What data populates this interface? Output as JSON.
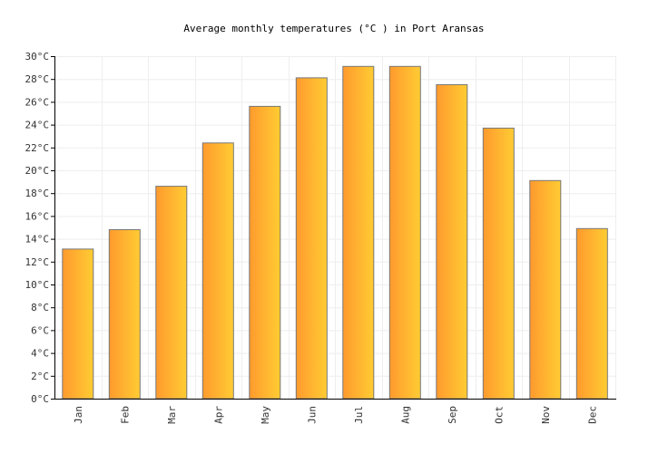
{
  "chart_data": {
    "type": "bar",
    "title": "Average monthly temperatures (°C ) in Port Aransas",
    "xlabel": "",
    "ylabel": "",
    "categories": [
      "Jan",
      "Feb",
      "Mar",
      "Apr",
      "May",
      "Jun",
      "Jul",
      "Aug",
      "Sep",
      "Oct",
      "Nov",
      "Dec"
    ],
    "values": [
      13.1,
      14.8,
      18.6,
      22.4,
      25.6,
      28.1,
      29.1,
      29.1,
      27.5,
      23.7,
      19.1,
      14.9
    ],
    "ylim": [
      0,
      30
    ],
    "y_ticks": [
      0,
      2,
      4,
      6,
      8,
      10,
      12,
      14,
      16,
      18,
      20,
      22,
      24,
      26,
      28,
      30
    ],
    "y_tick_labels": [
      "0°C",
      "2°C",
      "4°C",
      "6°C",
      "8°C",
      "10°C",
      "12°C",
      "14°C",
      "16°C",
      "18°C",
      "20°C",
      "22°C",
      "24°C",
      "26°C",
      "28°C",
      "30°C"
    ],
    "grid": true,
    "legend": "none"
  },
  "colors": {
    "bar_gradient_start": "#ff9a2e",
    "bar_gradient_end": "#ffcc33",
    "bar_stroke": "#777777",
    "grid": "#eeeeee",
    "axis": "#000000"
  }
}
